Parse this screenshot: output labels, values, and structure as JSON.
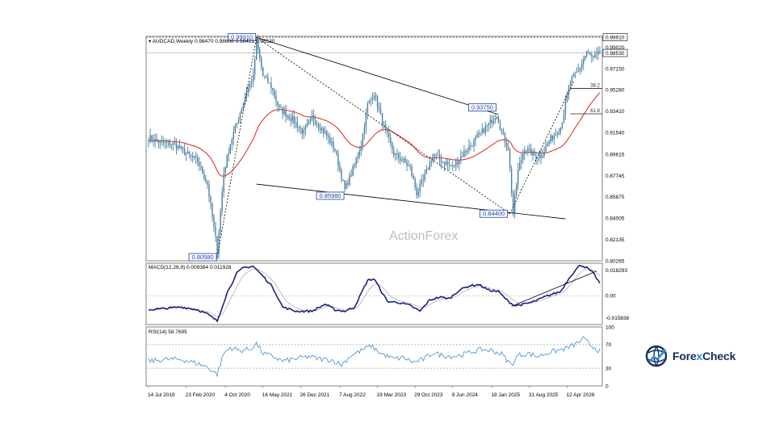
{
  "chart_data": [
    {
      "type": "candlestick",
      "symbol_line": "AUDCAD,Weekly",
      "ohlc_line": "0.98470 0.98608 0.98421 0.98530",
      "watermark": "ActionForex",
      "y_ticks": [
        "0.99020",
        "0.97150",
        "0.95280",
        "0.93410",
        "0.91540",
        "0.89615",
        "0.87745",
        "0.85875",
        "0.84005",
        "0.82135",
        "0.80265"
      ],
      "ylim": [
        0.80265,
        0.99991
      ],
      "x_ticks": [
        "14 Jul 2019",
        "23 Feb 2020",
        "4 Oct 2020",
        "16 May 2021",
        "26 Dec 2021",
        "7 Aug 2022",
        "19 Mar 2023",
        "29 Oct 2023",
        "9 Jun 2024",
        "19 Jan 2025",
        "31 Aug 2025",
        "12 Apr 2026"
      ],
      "current_price": "0.98530",
      "high_line_label": "0.99910",
      "fib_levels": [
        {
          "label": "38.2",
          "value": 0.9541
        },
        {
          "label": "61.8",
          "value": 0.9318
        }
      ],
      "annotations": [
        {
          "label": "0.80580",
          "value": 0.8058,
          "bar": 42
        },
        {
          "label": "0.99910",
          "value": 0.9991,
          "bar": 66
        },
        {
          "label": "0.93750",
          "value": 0.9375,
          "bar": 213
        },
        {
          "label": "0.85980",
          "value": 0.8598,
          "bar": 120
        },
        {
          "label": "0.84400",
          "value": 0.844,
          "bar": 220
        }
      ],
      "anchors": [
        [
          0,
          0.911
        ],
        [
          8,
          0.906
        ],
        [
          16,
          0.905
        ],
        [
          24,
          0.896
        ],
        [
          30,
          0.89
        ],
        [
          36,
          0.87
        ],
        [
          42,
          0.812
        ],
        [
          46,
          0.88
        ],
        [
          50,
          0.906
        ],
        [
          55,
          0.928
        ],
        [
          60,
          0.952
        ],
        [
          64,
          0.964
        ],
        [
          66,
          0.995
        ],
        [
          70,
          0.965
        ],
        [
          75,
          0.956
        ],
        [
          80,
          0.936
        ],
        [
          88,
          0.927
        ],
        [
          95,
          0.915
        ],
        [
          100,
          0.929
        ],
        [
          108,
          0.915
        ],
        [
          114,
          0.9
        ],
        [
          120,
          0.865
        ],
        [
          125,
          0.883
        ],
        [
          130,
          0.905
        ],
        [
          134,
          0.94
        ],
        [
          138,
          0.95
        ],
        [
          144,
          0.92
        ],
        [
          150,
          0.897
        ],
        [
          156,
          0.89
        ],
        [
          160,
          0.884
        ],
        [
          164,
          0.862
        ],
        [
          168,
          0.873
        ],
        [
          174,
          0.896
        ],
        [
          180,
          0.89
        ],
        [
          186,
          0.885
        ],
        [
          192,
          0.896
        ],
        [
          198,
          0.906
        ],
        [
          204,
          0.916
        ],
        [
          210,
          0.926
        ],
        [
          213,
          0.932
        ],
        [
          216,
          0.915
        ],
        [
          220,
          0.902
        ],
        [
          223,
          0.845
        ],
        [
          226,
          0.882
        ],
        [
          230,
          0.902
        ],
        [
          236,
          0.895
        ],
        [
          240,
          0.895
        ],
        [
          246,
          0.91
        ],
        [
          252,
          0.92
        ],
        [
          258,
          0.96
        ],
        [
          263,
          0.97
        ],
        [
          268,
          0.986
        ],
        [
          272,
          0.98
        ],
        [
          276,
          0.9853
        ]
      ]
    },
    {
      "type": "line",
      "indicator_label": "MACD(12,26,9) 0.009384 0.011928",
      "y_ticks": [
        "0.018293",
        "0.00",
        "-0.015838"
      ],
      "ylim": [
        -0.0205,
        0.0232
      ],
      "series": [
        {
          "name": "MACD",
          "anchors": [
            [
              0,
              -0.01
            ],
            [
              20,
              -0.008
            ],
            [
              30,
              -0.01
            ],
            [
              36,
              -0.013
            ],
            [
              42,
              -0.018
            ],
            [
              48,
              0.002
            ],
            [
              54,
              0.016
            ],
            [
              58,
              0.02
            ],
            [
              64,
              0.021
            ],
            [
              70,
              0.014
            ],
            [
              76,
              0.006
            ],
            [
              82,
              -0.008
            ],
            [
              90,
              -0.011
            ],
            [
              100,
              -0.011
            ],
            [
              108,
              -0.006
            ],
            [
              114,
              -0.01
            ],
            [
              120,
              -0.011
            ],
            [
              126,
              -0.008
            ],
            [
              134,
              0.011
            ],
            [
              138,
              0.012
            ],
            [
              146,
              -0.004
            ],
            [
              154,
              -0.005
            ],
            [
              160,
              -0.007
            ],
            [
              166,
              -0.011
            ],
            [
              172,
              -0.003
            ],
            [
              178,
              -0.001
            ],
            [
              184,
              -0.002
            ],
            [
              190,
              0.004
            ],
            [
              196,
              0.007
            ],
            [
              202,
              0.008
            ],
            [
              208,
              0.004
            ],
            [
              214,
              0.003
            ],
            [
              220,
              -0.004
            ],
            [
              224,
              -0.007
            ],
            [
              230,
              -0.006
            ],
            [
              236,
              -0.004
            ],
            [
              244,
              0.0
            ],
            [
              252,
              0.003
            ],
            [
              258,
              0.014
            ],
            [
              264,
              0.022
            ],
            [
              268,
              0.02
            ],
            [
              272,
              0.016
            ],
            [
              276,
              0.009
            ]
          ]
        }
      ]
    },
    {
      "type": "line",
      "indicator_label": "RSI(14) 58.7695",
      "y_ticks": [
        "100",
        "70",
        "30",
        "0"
      ],
      "ylim": [
        0,
        100
      ],
      "series": [
        {
          "name": "RSI",
          "anchors": [
            [
              0,
              42
            ],
            [
              10,
              45
            ],
            [
              20,
              45
            ],
            [
              30,
              38
            ],
            [
              36,
              32
            ],
            [
              42,
              20
            ],
            [
              46,
              55
            ],
            [
              50,
              65
            ],
            [
              56,
              60
            ],
            [
              62,
              62
            ],
            [
              66,
              72
            ],
            [
              70,
              55
            ],
            [
              76,
              50
            ],
            [
              82,
              42
            ],
            [
              90,
              46
            ],
            [
              98,
              50
            ],
            [
              104,
              46
            ],
            [
              112,
              44
            ],
            [
              118,
              36
            ],
            [
              124,
              52
            ],
            [
              130,
              60
            ],
            [
              136,
              68
            ],
            [
              142,
              55
            ],
            [
              150,
              46
            ],
            [
              156,
              48
            ],
            [
              162,
              40
            ],
            [
              168,
              45
            ],
            [
              174,
              56
            ],
            [
              180,
              52
            ],
            [
              186,
              50
            ],
            [
              192,
              53
            ],
            [
              198,
              58
            ],
            [
              204,
              62
            ],
            [
              210,
              60
            ],
            [
              216,
              54
            ],
            [
              222,
              35
            ],
            [
              226,
              52
            ],
            [
              232,
              55
            ],
            [
              238,
              50
            ],
            [
              244,
              56
            ],
            [
              250,
              60
            ],
            [
              256,
              64
            ],
            [
              262,
              72
            ],
            [
              266,
              80
            ],
            [
              270,
              70
            ],
            [
              276,
              59
            ]
          ]
        }
      ]
    }
  ],
  "brand": {
    "part1": "Fore",
    "part2": "x",
    "part3": "Check"
  }
}
